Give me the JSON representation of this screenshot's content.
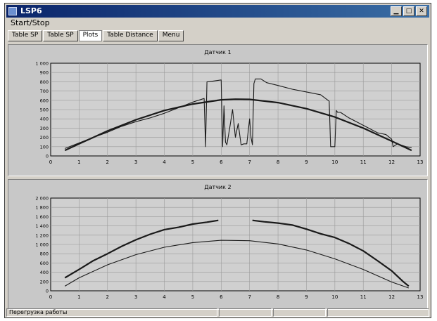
{
  "window": {
    "title": "LSP6"
  },
  "menu": {
    "label": "Start/Stop"
  },
  "tabs": [
    {
      "label": "Table SP",
      "active": false
    },
    {
      "label": "Table SP",
      "active": false
    },
    {
      "label": "Plots",
      "active": true
    },
    {
      "label": "Table Distance",
      "active": false
    },
    {
      "label": "Menu",
      "active": false
    }
  ],
  "status": {
    "text": "Перегрузка работы",
    "cells": [
      "",
      "",
      ""
    ]
  },
  "colors": {
    "line": "#1a1a1a",
    "grid": "#9a9a9a",
    "plot_bg": "#d0d0d0"
  },
  "chart_data": [
    {
      "type": "line",
      "title": "Датчик 1",
      "xlim": [
        0,
        13
      ],
      "ylim": [
        0,
        1000
      ],
      "xticks": [
        0,
        1,
        2,
        3,
        4,
        5,
        6,
        7,
        8,
        9,
        10,
        11,
        12,
        13
      ],
      "yticks": [
        0,
        100,
        200,
        300,
        400,
        500,
        600,
        700,
        800,
        900,
        1000
      ],
      "ytick_labels": [
        "0",
        "100",
        "200",
        "300",
        "400",
        "500",
        "600",
        "700",
        "800",
        "900",
        "1 000"
      ],
      "grid": true,
      "series": [
        {
          "style": "thin",
          "x": [
            0.5,
            1,
            1.5,
            2,
            2.5,
            3,
            3.5,
            4,
            4.5,
            5,
            5.4,
            5.45,
            5.5,
            5.55,
            6,
            6.05,
            6.1,
            6.15,
            6.2,
            6.3,
            6.4,
            6.5,
            6.6,
            6.7,
            6.8,
            6.9,
            7.0,
            7.05,
            7.1,
            7.15,
            7.2,
            7.4,
            7.6,
            8,
            8.5,
            9,
            9.5,
            9.8,
            9.85,
            9.9,
            10.0,
            10.05,
            10.1,
            10.2,
            10.5,
            11,
            11.5,
            11.8,
            12,
            12.05,
            12.2,
            12.5,
            12.7
          ],
          "y": [
            80,
            140,
            200,
            255,
            320,
            370,
            410,
            460,
            520,
            580,
            620,
            100,
            800,
            800,
            820,
            100,
            540,
            150,
            120,
            300,
            500,
            200,
            350,
            120,
            130,
            130,
            400,
            200,
            120,
            780,
            830,
            830,
            790,
            760,
            720,
            690,
            660,
            590,
            100,
            100,
            100,
            490,
            470,
            470,
            410,
            330,
            250,
            230,
            180,
            100,
            130,
            100,
            90
          ]
        },
        {
          "style": "thick",
          "x": [
            0.5,
            1,
            2,
            3,
            4,
            5,
            6,
            6.5,
            7,
            8,
            9,
            10,
            11,
            12,
            12.7
          ],
          "y": [
            60,
            130,
            270,
            390,
            490,
            560,
            605,
            612,
            610,
            575,
            510,
            420,
            300,
            160,
            60
          ]
        }
      ]
    },
    {
      "type": "line",
      "title": "Датчик 2",
      "xlim": [
        0,
        13
      ],
      "ylim": [
        0,
        2000
      ],
      "xticks": [
        0,
        1,
        2,
        3,
        4,
        5,
        6,
        7,
        8,
        9,
        10,
        11,
        12,
        13
      ],
      "yticks": [
        0,
        200,
        400,
        600,
        800,
        1000,
        1200,
        1400,
        1600,
        1800,
        2000
      ],
      "ytick_labels": [
        "0",
        "200",
        "400",
        "600",
        "800",
        "1 000",
        "1 200",
        "1 400",
        "1 600",
        "1 800",
        "2 000"
      ],
      "grid": true,
      "series": [
        {
          "style": "thick",
          "x": [
            0.5,
            1,
            1.5,
            2,
            2.5,
            3,
            3.5,
            4,
            4.5,
            5,
            5.5,
            5.9
          ],
          "y": [
            280,
            460,
            650,
            800,
            960,
            1100,
            1220,
            1320,
            1370,
            1440,
            1480,
            1520
          ]
        },
        {
          "style": "thick",
          "x": [
            7.1,
            7.5,
            8,
            8.5,
            9,
            9.5,
            10,
            10.5,
            11,
            11.5,
            12,
            12.4,
            12.6
          ],
          "y": [
            1520,
            1490,
            1460,
            1420,
            1330,
            1230,
            1150,
            1020,
            860,
            650,
            430,
            200,
            100
          ]
        },
        {
          "style": "thin",
          "x": [
            0.5,
            1,
            2,
            3,
            4,
            5,
            6,
            7,
            8,
            9,
            10,
            11,
            12,
            12.6
          ],
          "y": [
            100,
            280,
            560,
            780,
            940,
            1040,
            1090,
            1080,
            1010,
            880,
            690,
            460,
            190,
            60
          ]
        }
      ]
    }
  ]
}
